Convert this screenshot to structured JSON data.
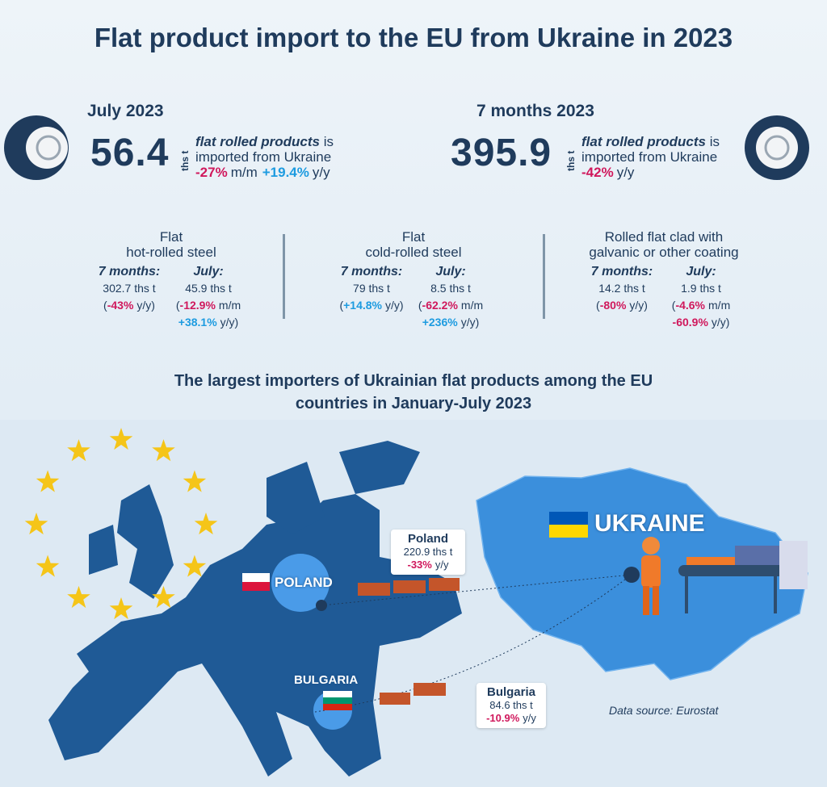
{
  "title": "Flat product import to the EU from Ukraine in 2023",
  "summary": [
    {
      "period": "July 2023",
      "amount": "56.4",
      "unit": "ths t",
      "product": "flat rolled products",
      "verb": "is",
      "line2": "imported from Ukraine",
      "changes": [
        {
          "value": "-27%",
          "unit": "m/m"
        },
        {
          "value": "+19.4%",
          "unit": "y/y"
        }
      ]
    },
    {
      "period": "7 months 2023",
      "amount": "395.9",
      "unit": "ths t",
      "product": "flat rolled products",
      "verb": "is",
      "line2": "imported from Ukraine",
      "changes": [
        {
          "value": "-42%",
          "unit": "y/y"
        }
      ]
    }
  ],
  "products": [
    {
      "name": [
        "Flat",
        "hot-rolled steel"
      ],
      "columns": [
        {
          "label": "7 months:",
          "amount": "302.7 ths t",
          "changes": [
            {
              "open": "(",
              "value": "-43%",
              "unit": "y/y)"
            }
          ]
        },
        {
          "label": "July:",
          "amount": "45.9 ths t",
          "changes": [
            {
              "open": "(",
              "value": "-12.9%",
              "unit": "m/m"
            },
            {
              "value": "+38.1%",
              "unit": "y/y)"
            }
          ]
        }
      ]
    },
    {
      "name": [
        "Flat",
        "cold-rolled steel"
      ],
      "columns": [
        {
          "label": "7 months:",
          "amount": "79 ths t",
          "changes": [
            {
              "open": "(",
              "value": "+14.8%",
              "unit": "y/y)"
            }
          ]
        },
        {
          "label": "July:",
          "amount": "8.5 ths t",
          "changes": [
            {
              "open": "(",
              "value": "-62.2%",
              "unit": "m/m"
            },
            {
              "value": "+236%",
              "unit": "y/y)"
            }
          ]
        }
      ]
    },
    {
      "name": [
        "Rolled flat clad with",
        "galvanic or other coating"
      ],
      "columns": [
        {
          "label": "7 months:",
          "amount": "14.2 ths t",
          "changes": [
            {
              "open": "(",
              "value": "-80%",
              "unit": "y/y)"
            }
          ]
        },
        {
          "label": "July:",
          "amount": "1.9 ths t",
          "changes": [
            {
              "open": "(",
              "value": "-4.6%",
              "unit": "m/m"
            },
            {
              "value": "-60.9%",
              "unit": "y/y)"
            }
          ]
        }
      ]
    }
  ],
  "map": {
    "subtitle": [
      "The largest importers of Ukrainian flat products among the EU",
      "countries in January-July 2023"
    ],
    "exporter": "UKRAINE",
    "importers": [
      {
        "label": "POLAND",
        "name": "Poland",
        "amount": "220.9 ths t",
        "change": "-33%",
        "unit": "y/y"
      },
      {
        "label": "BULGARIA",
        "name": "Bulgaria",
        "amount": "84.6 ths t",
        "change": "-10.9%",
        "unit": "y/y"
      }
    ],
    "source": "Data source: Eurostat"
  }
}
